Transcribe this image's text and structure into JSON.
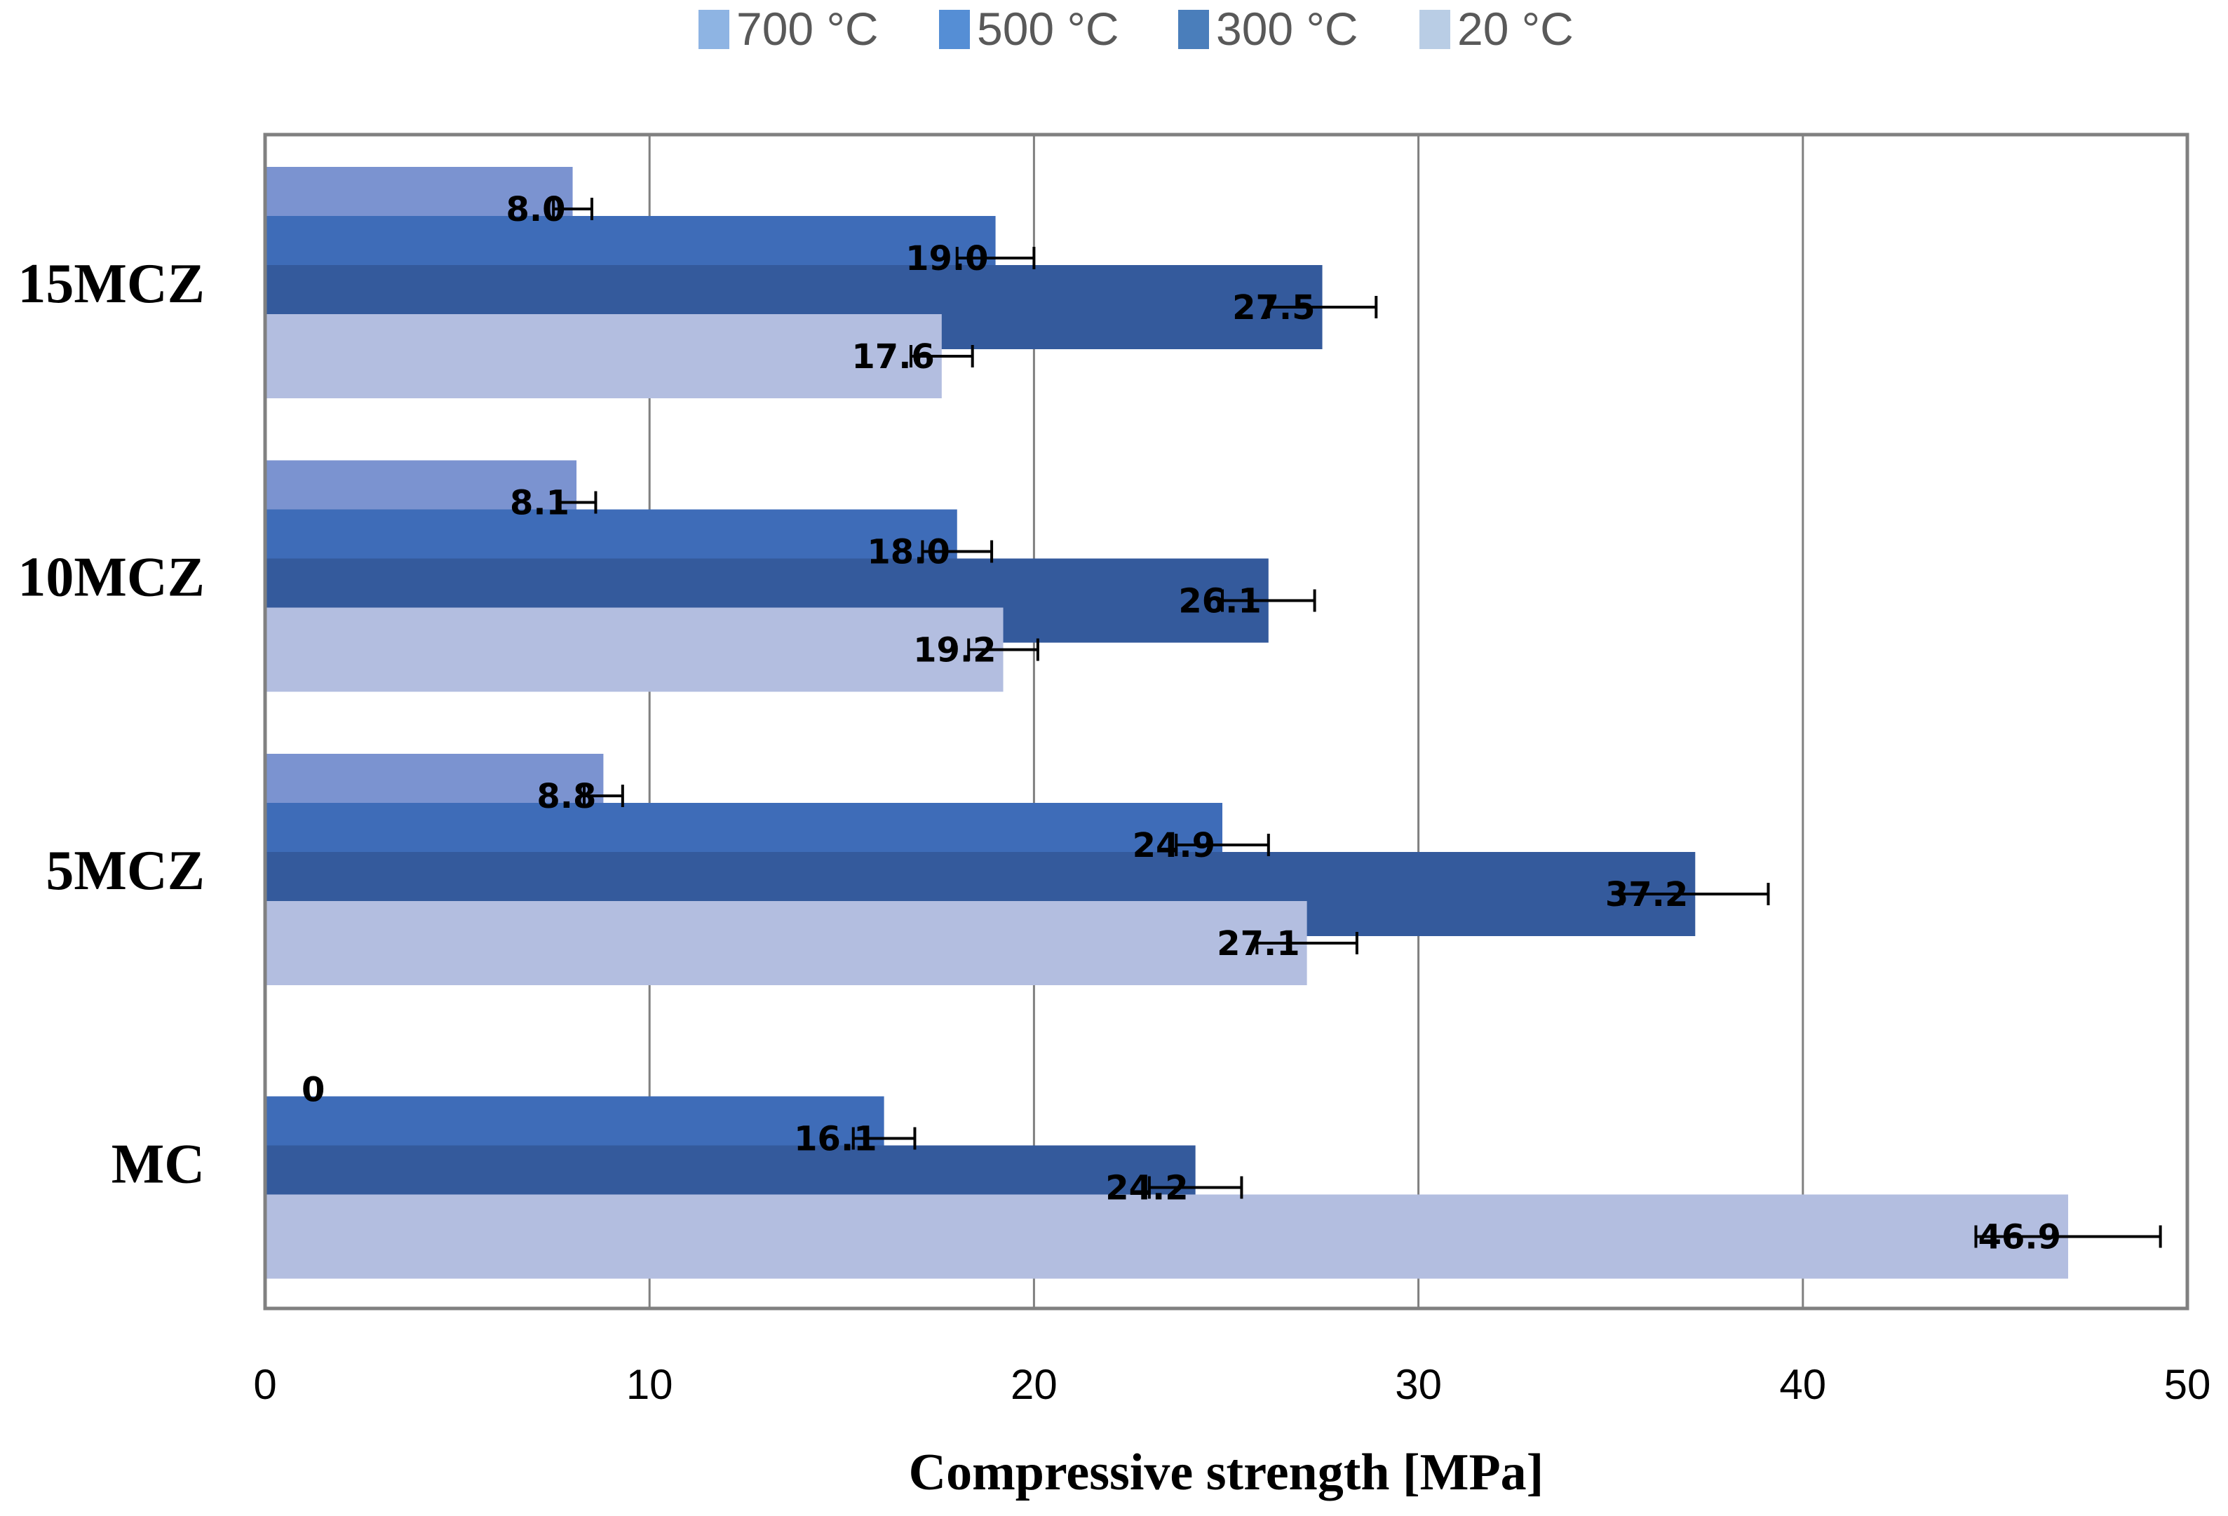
{
  "chart_data": {
    "type": "bar",
    "orientation": "horizontal",
    "title": "",
    "xlabel": "Compressive strength [MPa]",
    "ylabel": "",
    "xlim": [
      0,
      50
    ],
    "xticks": [
      0,
      10,
      20,
      30,
      40,
      50
    ],
    "grid": true,
    "legend_position": "top",
    "categories": [
      "15MCZ",
      "10MCZ",
      "5MCZ",
      "MC"
    ],
    "series": [
      {
        "name": "700 °C",
        "legend_color": "#8EB4E3",
        "bar_color": "#7B93D0",
        "values": [
          8.0,
          8.1,
          8.8,
          0
        ],
        "labels": [
          "8.0",
          "8.1",
          "8.8",
          "0"
        ],
        "errors": [
          0.5,
          0.5,
          0.5,
          null
        ]
      },
      {
        "name": "500 °C",
        "legend_color": "#558ED5",
        "bar_color": "#3E6CB8",
        "values": [
          19.0,
          18.0,
          24.9,
          16.1
        ],
        "labels": [
          "19.0",
          "18.0",
          "24.9",
          "16.1"
        ],
        "errors": [
          1.0,
          0.9,
          1.2,
          0.8
        ]
      },
      {
        "name": "300 °C",
        "legend_color": "#4A7EBB",
        "bar_color": "#345A9C",
        "values": [
          27.5,
          26.1,
          37.2,
          24.2
        ],
        "labels": [
          "27.5",
          "26.1",
          "37.2",
          "24.2"
        ],
        "errors": [
          1.4,
          1.2,
          1.9,
          1.2
        ]
      },
      {
        "name": "20 °C",
        "legend_color": "#B9CDE5",
        "bar_color": "#B3BEE0",
        "values": [
          17.6,
          19.2,
          27.1,
          46.9
        ],
        "labels": [
          "17.6",
          "19.2",
          "27.1",
          "46.9"
        ],
        "errors": [
          0.8,
          0.9,
          1.3,
          2.4
        ]
      }
    ]
  }
}
